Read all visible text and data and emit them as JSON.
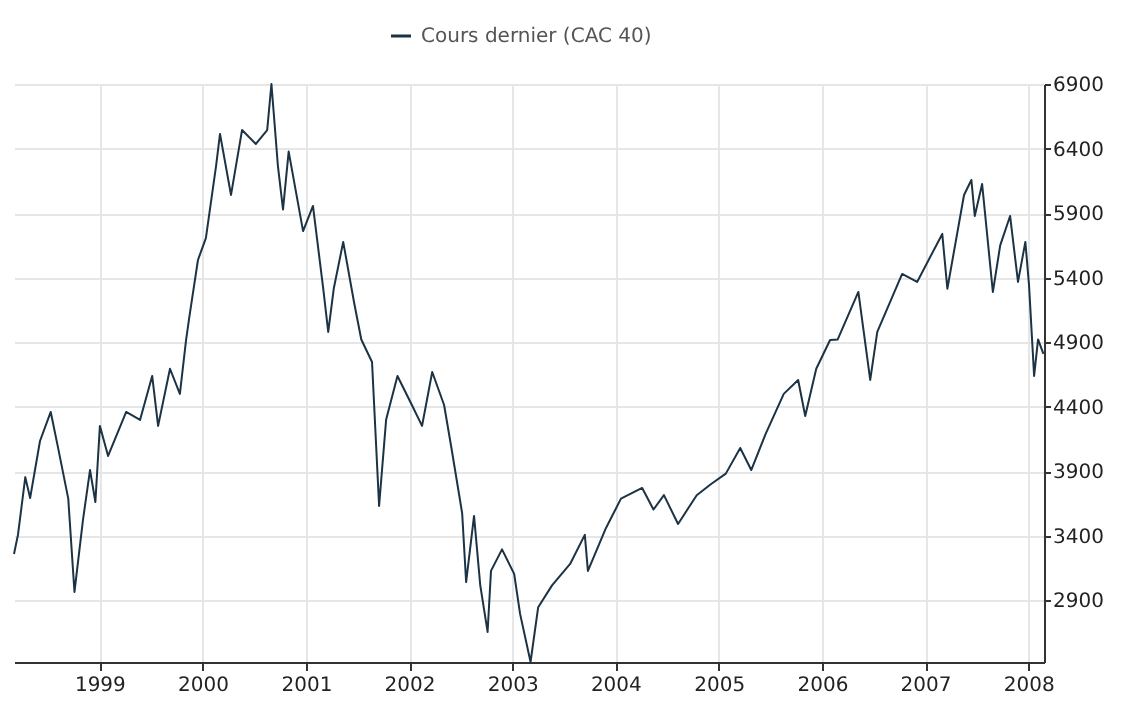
{
  "chart_data": {
    "type": "line",
    "x": [
      "1998-03-05",
      "1998-03-19",
      "1998-04-14",
      "1998-05-01",
      "1998-06-05",
      "1998-07-13",
      "1998-08-08",
      "1998-09-13",
      "1998-10-05",
      "1998-11-04",
      "1998-11-29",
      "1998-12-18",
      "1999-01-03",
      "1999-02-01",
      "1999-04-06",
      "1999-05-25",
      "1999-07-07",
      "1999-07-28",
      "1999-09-08",
      "1999-10-13",
      "1999-11-04",
      "1999-11-15",
      "1999-12-16",
      "2000-01-13",
      "2000-02-18",
      "2000-03-03",
      "2000-04-11",
      "2000-05-20",
      "2000-07-08",
      "2000-08-17",
      "2000-09-01",
      "2000-09-24",
      "2000-10-12",
      "2000-11-01",
      "2000-12-22",
      "2001-01-26",
      "2001-03-03",
      "2001-03-21",
      "2001-04-10",
      "2001-05-13",
      "2001-06-21",
      "2001-07-16",
      "2001-08-23",
      "2001-09-17",
      "2001-10-12",
      "2001-11-21",
      "2002-01-11",
      "2002-02-16",
      "2002-03-24",
      "2002-05-05",
      "2002-05-31",
      "2002-07-08",
      "2002-07-22",
      "2002-08-19",
      "2002-09-10",
      "2002-10-06",
      "2002-10-18",
      "2002-11-26",
      "2003-01-08",
      "2003-01-29",
      "2003-03-07",
      "2003-04-03",
      "2003-05-22",
      "2003-07-25",
      "2003-09-15",
      "2003-09-26",
      "2003-11-29",
      "2004-01-21",
      "2004-04-05",
      "2004-05-15",
      "2004-06-21",
      "2004-08-10",
      "2004-10-15",
      "2004-12-05",
      "2005-01-26",
      "2005-03-18",
      "2005-04-26",
      "2005-06-16",
      "2005-08-19",
      "2005-10-09",
      "2005-11-03",
      "2005-12-12",
      "2006-01-30",
      "2006-02-26",
      "2006-05-10",
      "2006-06-21",
      "2006-07-16",
      "2006-10-12",
      "2006-12-04",
      "2007-03-03",
      "2007-03-21",
      "2007-05-19",
      "2007-06-14",
      "2007-06-26",
      "2007-07-22",
      "2007-08-29",
      "2007-09-24",
      "2007-10-29",
      "2007-11-26",
      "2007-12-22",
      "2008-01-04",
      "2008-01-22",
      "2008-02-05",
      "2008-02-24"
    ],
    "series": [
      {
        "name": "Cours dernier (CAC 40)",
        "color": "#1b3344",
        "values": [
          3257,
          3405,
          3853,
          3690,
          4133,
          4358,
          4080,
          3686,
          2963,
          3520,
          3908,
          3660,
          4250,
          4017,
          4358,
          4296,
          4637,
          4250,
          4693,
          4498,
          4916,
          5087,
          5536,
          5706,
          6264,
          6513,
          6040,
          6543,
          6435,
          6543,
          6900,
          6264,
          5928,
          6376,
          5760,
          5955,
          5319,
          4978,
          5319,
          5676,
          5201,
          4920,
          4745,
          3630,
          4300,
          4637,
          4412,
          4250,
          4668,
          4412,
          4079,
          3573,
          3040,
          3552,
          3014,
          2653,
          3126,
          3293,
          3103,
          2793,
          2420,
          2845,
          3014,
          3180,
          3405,
          3126,
          3459,
          3686,
          3769,
          3602,
          3713,
          3490,
          3713,
          3800,
          3880,
          4079,
          3908,
          4188,
          4498,
          4606,
          4327,
          4693,
          4916,
          4920,
          5288,
          4606,
          4978,
          5428,
          5366,
          5738,
          5313,
          6040,
          6156,
          5877,
          6125,
          5288,
          5649,
          5877,
          5366,
          5676,
          5341,
          4637,
          4920,
          4808
        ]
      }
    ],
    "xlim": [
      "1998-03-05",
      "2008-02-26"
    ],
    "xticks": [
      {
        "value": "1999",
        "label": "1999"
      },
      {
        "value": "2000",
        "label": "2000"
      },
      {
        "value": "2001",
        "label": "2001"
      },
      {
        "value": "2002",
        "label": "2002"
      },
      {
        "value": "2003",
        "label": "2003"
      },
      {
        "value": "2004",
        "label": "2004"
      },
      {
        "value": "2005",
        "label": "2005"
      },
      {
        "value": "2006",
        "label": "2006"
      },
      {
        "value": "2007",
        "label": "2007"
      },
      {
        "value": "2008",
        "label": "2008"
      }
    ],
    "ylim": [
      2420,
      6900
    ],
    "yticks": [
      2900,
      3400,
      3900,
      4400,
      4900,
      5400,
      5900,
      6400,
      6900
    ],
    "grid": true,
    "legend": "top",
    "line_style": "solid"
  }
}
